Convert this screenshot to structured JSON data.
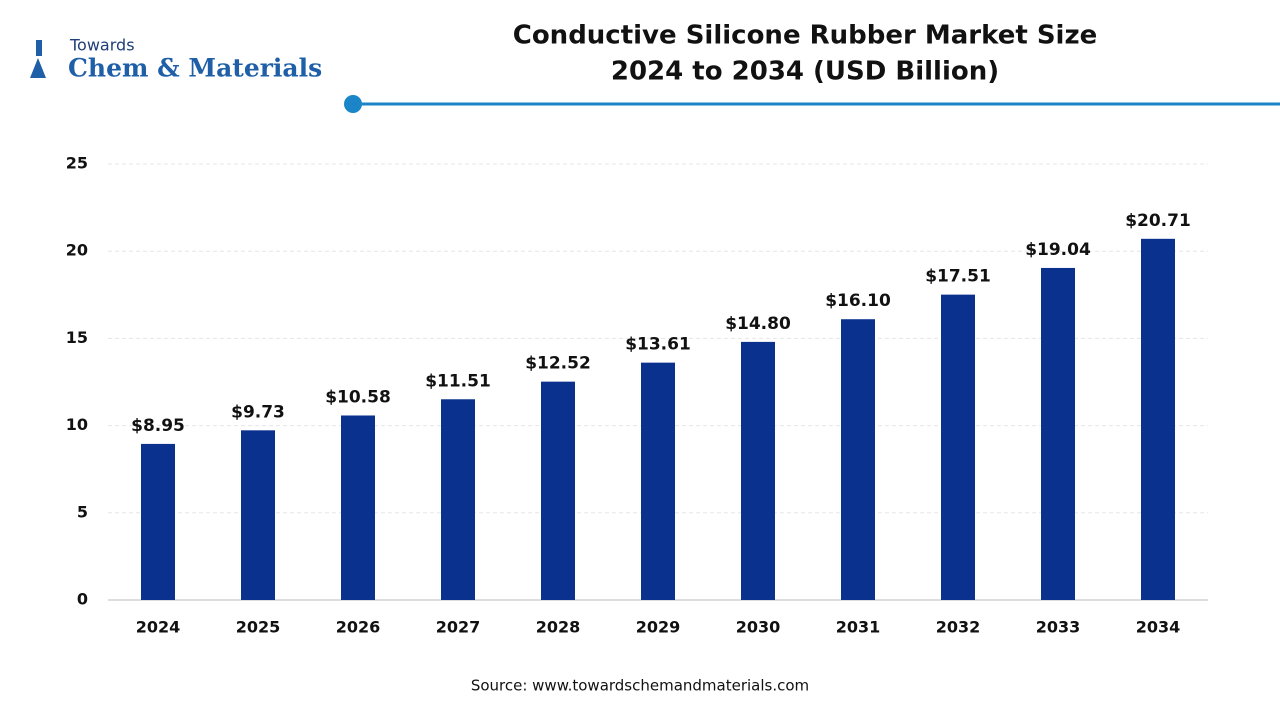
{
  "logo": {
    "top": "Towards",
    "main": "Chem & Materials"
  },
  "chart_data": {
    "type": "bar",
    "title": [
      "Conductive Silicone Rubber Market Size",
      "2024 to 2034 (USD Billion)"
    ],
    "categories": [
      "2024",
      "2025",
      "2026",
      "2027",
      "2028",
      "2029",
      "2030",
      "2031",
      "2032",
      "2033",
      "2034"
    ],
    "values": [
      8.95,
      9.73,
      10.58,
      11.51,
      12.52,
      13.61,
      14.8,
      16.1,
      17.51,
      19.04,
      20.71
    ],
    "value_labels": [
      "$8.95",
      "$9.73",
      "$10.58",
      "$11.51",
      "$12.52",
      "$13.61",
      "$14.80",
      "$16.10",
      "$17.51",
      "$19.04",
      "$20.71"
    ],
    "color": "#0b318f",
    "ylim": [
      0,
      25
    ],
    "yticks": [
      0,
      5,
      10,
      15,
      20,
      25
    ],
    "grid": true,
    "source": "Source: www.towardschemandmaterials.com"
  }
}
